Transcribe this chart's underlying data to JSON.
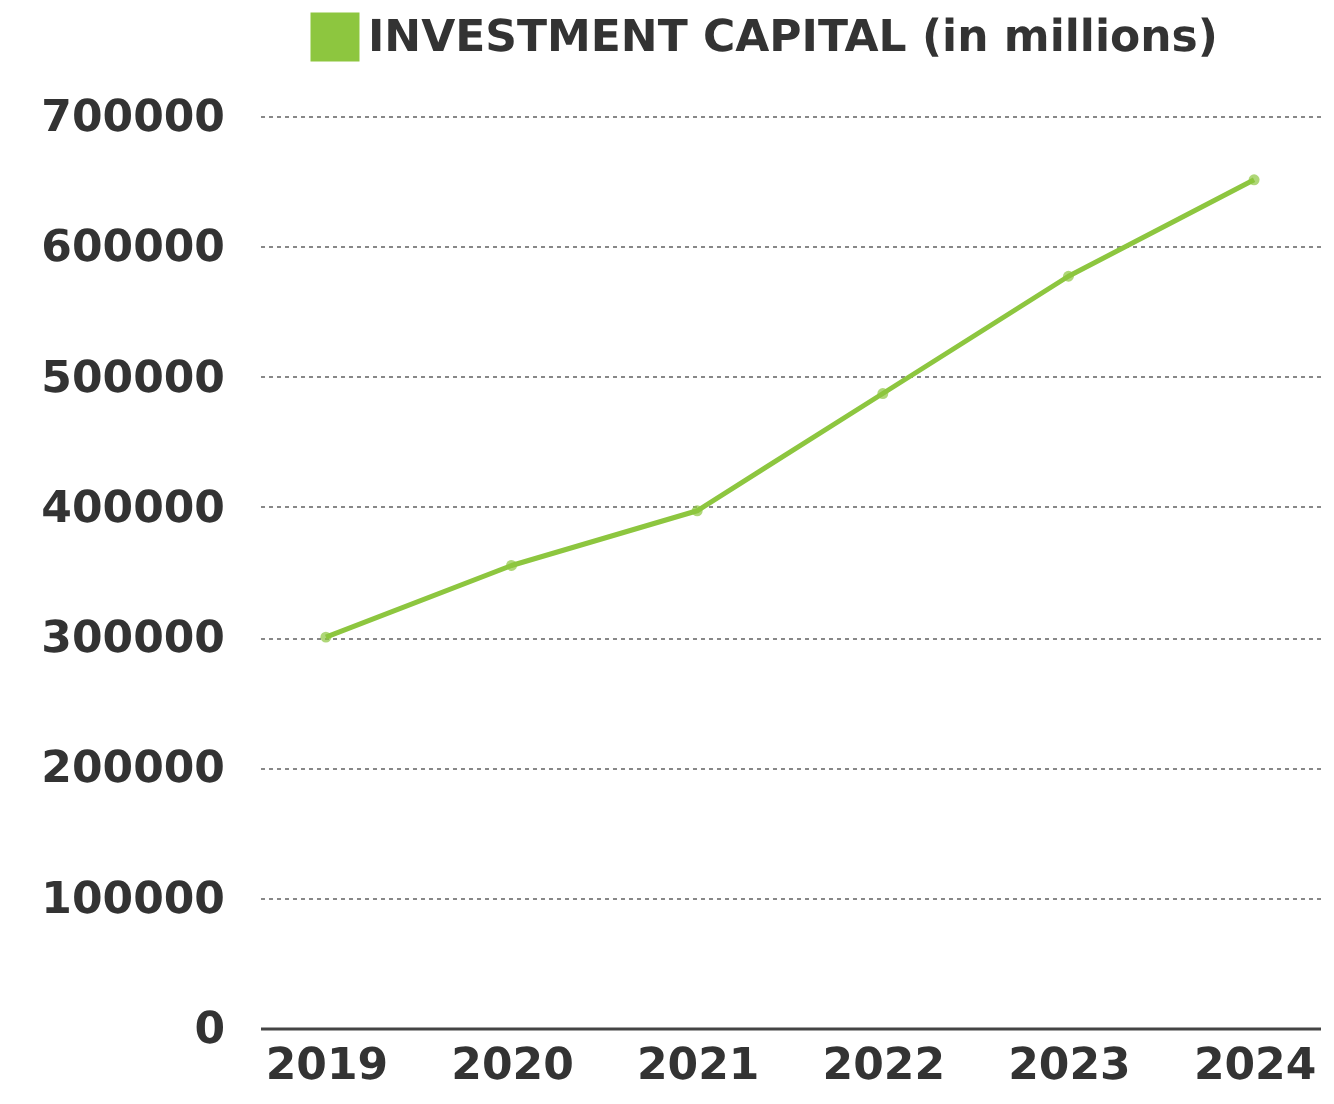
{
  "chart_data": {
    "type": "line",
    "categories": [
      "2019",
      "2020",
      "2021",
      "2022",
      "2023",
      "2024"
    ],
    "series": [
      {
        "name": "INVESTMENT CAPITAL (in millions)",
        "color": "#8dc63f",
        "values": [
          300000,
          355000,
          397000,
          487000,
          577000,
          651000
        ]
      }
    ],
    "ylim": [
      0,
      700000
    ],
    "yticks": [
      0,
      100000,
      200000,
      300000,
      400000,
      500000,
      600000,
      700000
    ],
    "grid": "y",
    "legend": "top",
    "marker": "circle",
    "line_style": "solid"
  }
}
